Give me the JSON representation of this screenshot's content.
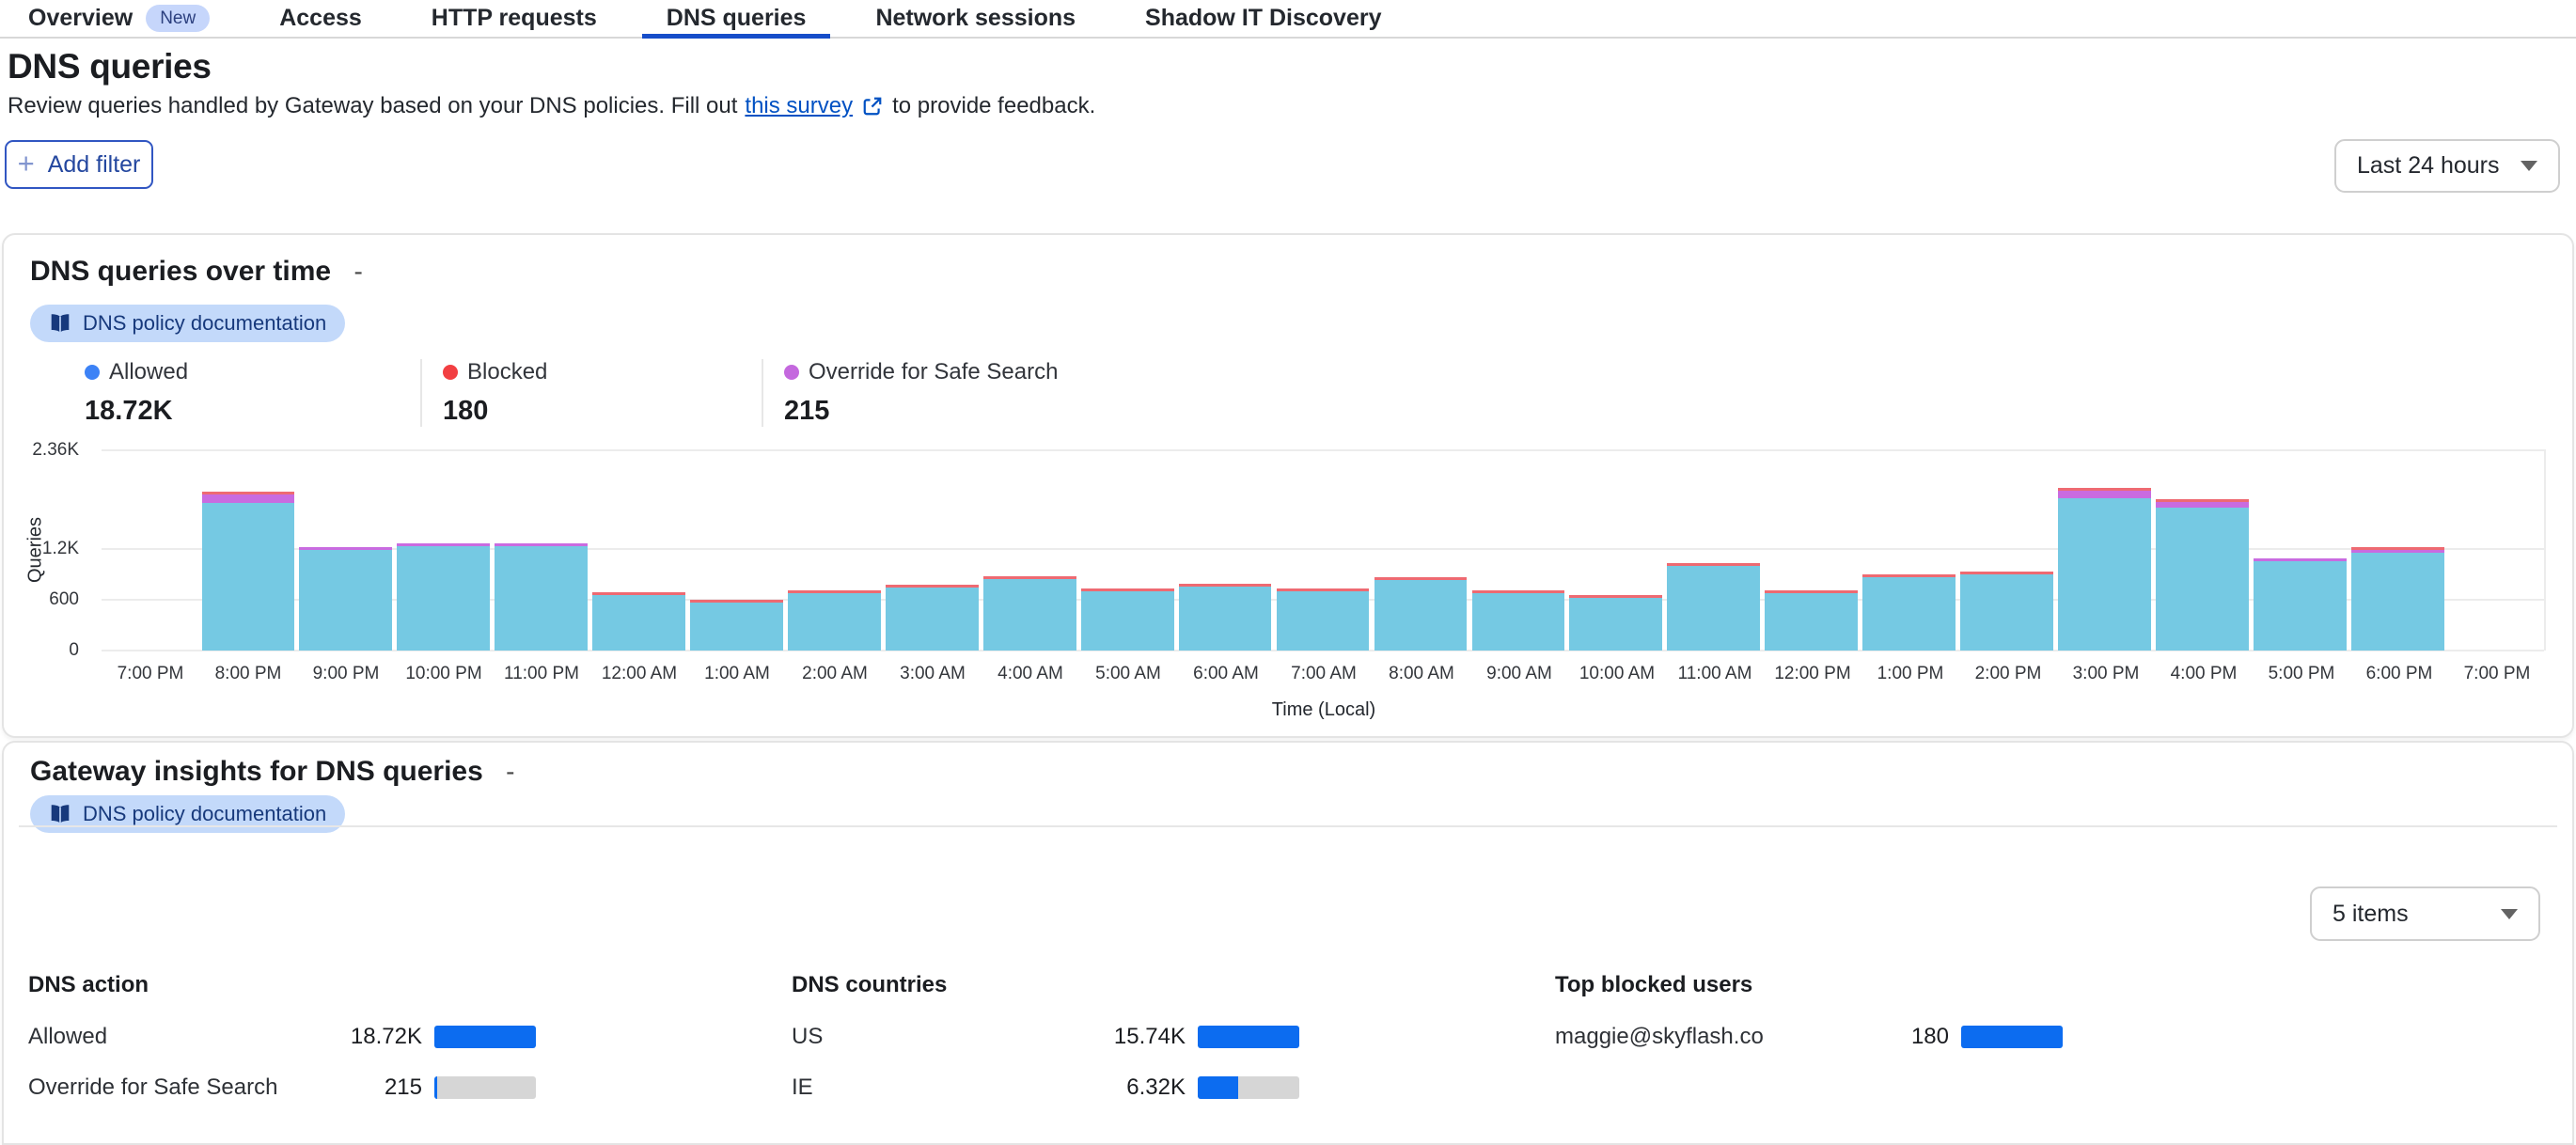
{
  "tabs": {
    "items": [
      {
        "label": "Overview",
        "badge": "New",
        "active": false
      },
      {
        "label": "Access",
        "active": false
      },
      {
        "label": "HTTP requests",
        "active": false
      },
      {
        "label": "DNS queries",
        "active": true
      },
      {
        "label": "Network sessions",
        "active": false
      },
      {
        "label": "Shadow IT Discovery",
        "active": false
      }
    ]
  },
  "header": {
    "title": "DNS queries",
    "description_prefix": "Review queries handled by Gateway based on your DNS policies. Fill out",
    "link_text": "this survey",
    "description_suffix": "to provide feedback."
  },
  "controls": {
    "add_filter_label": "Add filter",
    "time_range_value": "Last 24 hours"
  },
  "queries_card": {
    "title": "DNS queries over time",
    "title_suffix": "-",
    "doc_badge": "DNS policy documentation",
    "legend": [
      {
        "label": "Allowed",
        "value": "18.72K",
        "color": "#3c82f6"
      },
      {
        "label": "Blocked",
        "value": "180",
        "color": "#f23f42"
      },
      {
        "label": "Override for Safe Search",
        "value": "215",
        "color": "#c468de"
      }
    ]
  },
  "chart_data": {
    "type": "bar",
    "stacked": true,
    "title": "DNS queries over time",
    "xlabel": "Time (Local)",
    "ylabel": "Queries",
    "ylim": [
      0,
      2370
    ],
    "grid": true,
    "yticks": [
      {
        "value": 0,
        "label": "0"
      },
      {
        "value": 600,
        "label": "600"
      },
      {
        "value": 1200,
        "label": "1.2K"
      },
      {
        "value": 2360,
        "label": "2.36K"
      }
    ],
    "x": [
      "7:00 PM",
      "8:00 PM",
      "9:00 PM",
      "10:00 PM",
      "11:00 PM",
      "12:00 AM",
      "1:00 AM",
      "2:00 AM",
      "3:00 AM",
      "4:00 AM",
      "5:00 AM",
      "6:00 AM",
      "7:00 AM",
      "8:00 AM",
      "9:00 AM",
      "10:00 AM",
      "11:00 AM",
      "12:00 PM",
      "1:00 PM",
      "2:00 PM",
      "3:00 PM",
      "4:00 PM",
      "5:00 PM",
      "6:00 PM",
      "7:00 PM"
    ],
    "series": [
      {
        "name": "Allowed",
        "color": "#75c9e3",
        "values": [
          0,
          1740,
          1185,
          1225,
          1230,
          655,
          570,
          680,
          740,
          845,
          695,
          755,
          695,
          830,
          675,
          615,
          1000,
          675,
          865,
          895,
          1795,
          1685,
          1055,
          1150,
          0
        ]
      },
      {
        "name": "Override for Safe Search",
        "color": "#c96be0",
        "values": [
          0,
          100,
          18,
          12,
          16,
          0,
          0,
          0,
          0,
          0,
          0,
          0,
          0,
          0,
          0,
          0,
          0,
          0,
          0,
          0,
          85,
          60,
          22,
          12,
          0
        ]
      },
      {
        "name": "Blocked",
        "color": "#ee6a72",
        "values": [
          0,
          6,
          0,
          0,
          0,
          10,
          8,
          10,
          10,
          8,
          10,
          8,
          10,
          8,
          10,
          10,
          8,
          10,
          8,
          10,
          5,
          5,
          0,
          6,
          0
        ]
      }
    ],
    "totals": {
      "allowed": "18.72K",
      "blocked": "180",
      "override_for_safe_search": "215"
    }
  },
  "insights_card": {
    "title": "Gateway insights for DNS queries",
    "title_suffix": "-",
    "doc_badge": "DNS policy documentation",
    "items_select_value": "5 items",
    "columns": [
      {
        "header": "DNS action",
        "rows": [
          {
            "label": "Allowed",
            "value": "18.72K",
            "fill": 1
          },
          {
            "label": "Override for Safe Search",
            "value": "215",
            "fill": 0.012
          }
        ]
      },
      {
        "header": "DNS countries",
        "rows": [
          {
            "label": "US",
            "value": "15.74K",
            "fill": 1
          },
          {
            "label": "IE",
            "value": "6.32K",
            "fill": 0.402
          }
        ]
      },
      {
        "header": "Top blocked users",
        "rows": [
          {
            "label": "maggie@skyflash.co",
            "value": "180",
            "fill": 1
          }
        ]
      }
    ]
  }
}
